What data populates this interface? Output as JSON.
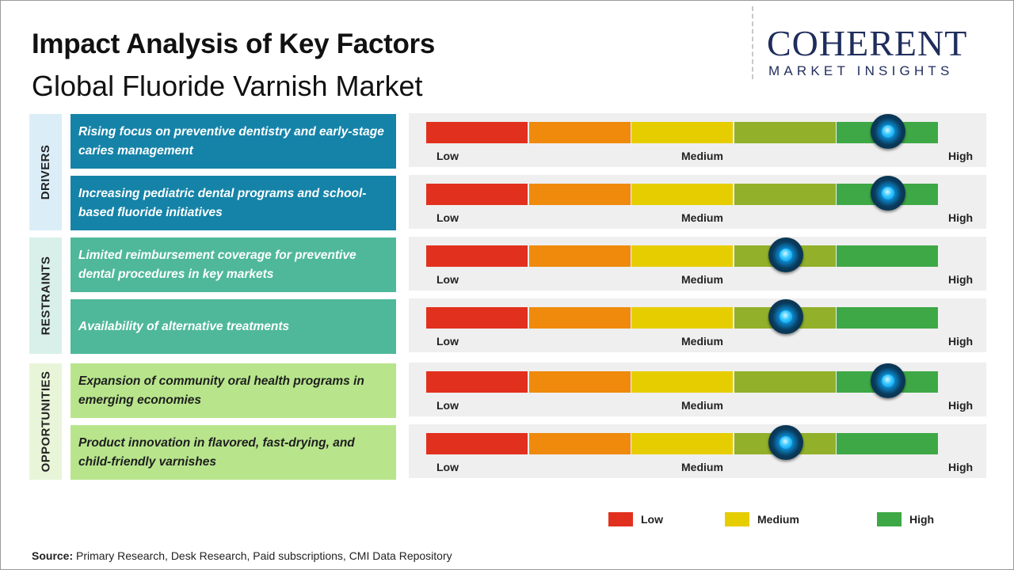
{
  "header": {
    "title": "Impact Analysis of Key Factors",
    "subtitle": "Global Fluoride Varnish Market"
  },
  "logo": {
    "main": "COHERENT",
    "sub": "MARKET INSIGHTS"
  },
  "chart_data": {
    "type": "table",
    "scale_labels": [
      "Low",
      "Medium",
      "High"
    ],
    "scale_segments": [
      {
        "color": "#e2301e"
      },
      {
        "color": "#ef8a0c"
      },
      {
        "color": "#e6cd00"
      },
      {
        "color": "#92b02a"
      },
      {
        "color": "#3ea846"
      }
    ],
    "groups": [
      {
        "name": "DRIVERS",
        "bg": "#dbeef8",
        "factor_bg": "#1583a8",
        "factor_color": "#ffffff",
        "rows": [
          0,
          1
        ]
      },
      {
        "name": "RESTRAINTS",
        "bg": "#d9f0ea",
        "factor_bg": "#4fb89a",
        "factor_color": "#ffffff",
        "rows": [
          2,
          3
        ]
      },
      {
        "name": "OPPORTUNITIES",
        "bg": "#e9f5d9",
        "factor_bg": "#b8e58c",
        "factor_color": "#1e1e1e",
        "rows": [
          4,
          5
        ]
      }
    ],
    "factors": [
      {
        "text": "Rising focus on preventive dentistry and early-stage caries management",
        "impact": 0.9
      },
      {
        "text": "Increasing pediatric dental programs and school-based fluoride initiatives",
        "impact": 0.9
      },
      {
        "text": "Limited reimbursement coverage for preventive dental procedures in key markets",
        "impact": 0.7
      },
      {
        "text": "Availability of alternative treatments",
        "impact": 0.7
      },
      {
        "text": "Expansion of community oral health programs in emerging economies",
        "impact": 0.9
      },
      {
        "text": "Product innovation in flavored, fast-drying, and child-friendly varnishes",
        "impact": 0.7
      }
    ],
    "legend": [
      {
        "label": "Low",
        "color": "#e2301e"
      },
      {
        "label": "Medium",
        "color": "#e6cd00"
      },
      {
        "label": "High",
        "color": "#3ea846"
      }
    ]
  },
  "footer": {
    "source_label": "Source:",
    "source_text": " Primary Research, Desk Research, Paid subscriptions, CMI Data Repository"
  }
}
